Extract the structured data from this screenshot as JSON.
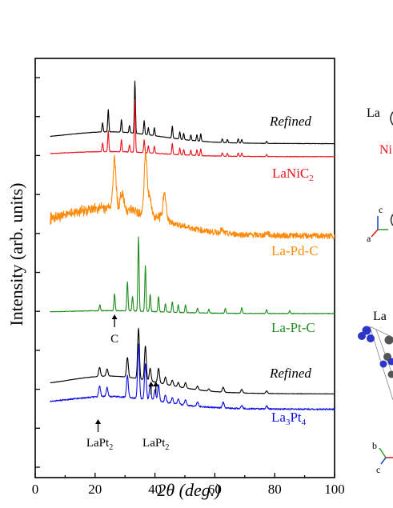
{
  "chart_data": {
    "type": "line",
    "xlabel": "2θ (deg.)",
    "ylabel": "Intensity (arb. units)",
    "xlim": [
      0,
      100
    ],
    "xticks": [
      "0",
      "20",
      "40",
      "60",
      "80",
      "100"
    ],
    "grid": false,
    "y_tick_labels_shown": false,
    "series": [
      {
        "name": "Refined",
        "color": "#000000",
        "style": "italic",
        "group": "LaNiC2",
        "background": 0.28,
        "peaks": [
          [
            22.5,
            0.25
          ],
          [
            24.4,
            0.62
          ],
          [
            28.8,
            0.35
          ],
          [
            31.5,
            0.2
          ],
          [
            33.3,
            1.45
          ],
          [
            36.4,
            0.38
          ],
          [
            37.8,
            0.2
          ],
          [
            39.8,
            0.22
          ],
          [
            45.8,
            0.33
          ],
          [
            48.3,
            0.2
          ],
          [
            49.6,
            0.17
          ],
          [
            52.0,
            0.15
          ],
          [
            54.0,
            0.17
          ],
          [
            55.3,
            0.2
          ],
          [
            62.5,
            0.1
          ],
          [
            64.2,
            0.09
          ],
          [
            67.8,
            0.12
          ],
          [
            69.0,
            0.1
          ],
          [
            77.3,
            0.06
          ]
        ]
      },
      {
        "name": "LaNiC2",
        "color": "#e8141c",
        "group": "LaNiC2",
        "background": 0.12,
        "peaks": [
          [
            22.5,
            0.25
          ],
          [
            24.4,
            0.58
          ],
          [
            28.8,
            0.33
          ],
          [
            31.5,
            0.2
          ],
          [
            33.3,
            1.45
          ],
          [
            36.4,
            0.35
          ],
          [
            37.8,
            0.2
          ],
          [
            39.8,
            0.2
          ],
          [
            45.8,
            0.3
          ],
          [
            48.3,
            0.18
          ],
          [
            49.6,
            0.15
          ],
          [
            52.0,
            0.14
          ],
          [
            54.0,
            0.16
          ],
          [
            55.3,
            0.18
          ],
          [
            62.5,
            0.09
          ],
          [
            64.2,
            0.08
          ],
          [
            67.8,
            0.1
          ],
          [
            69.0,
            0.09
          ],
          [
            77.3,
            0.06
          ]
        ]
      },
      {
        "name": "La-Pd-C",
        "color": "#ff8a0a",
        "group": "La-Pd-C",
        "background": 0.5,
        "peaks": [
          [
            26.5,
            1.0
          ],
          [
            29.0,
            0.35
          ],
          [
            36.9,
            1.25
          ],
          [
            38.3,
            0.35
          ],
          [
            43.2,
            0.6
          ],
          [
            62.3,
            0.07
          ],
          [
            77.5,
            0.05
          ]
        ]
      },
      {
        "name": "La-Pt-C",
        "color": "#1e8c1e",
        "group": "La-Pt-C",
        "background": 0.05,
        "peaks": [
          [
            21.6,
            0.12
          ],
          [
            26.5,
            0.35
          ],
          [
            30.8,
            0.6
          ],
          [
            32.5,
            0.3
          ],
          [
            34.5,
            1.55
          ],
          [
            36.8,
            0.95
          ],
          [
            38.4,
            0.35
          ],
          [
            41.2,
            0.32
          ],
          [
            43.5,
            0.17
          ],
          [
            45.8,
            0.22
          ],
          [
            47.8,
            0.16
          ],
          [
            50.2,
            0.16
          ],
          [
            54.2,
            0.1
          ],
          [
            58.0,
            0.08
          ],
          [
            63.5,
            0.1
          ],
          [
            69.0,
            0.12
          ],
          [
            77.3,
            0.08
          ],
          [
            85.0,
            0.06
          ]
        ]
      },
      {
        "name": "Refined",
        "color": "#000000",
        "style": "italic",
        "group": "La3Pt4",
        "background": 0.42,
        "peaks": [
          [
            21.5,
            0.25
          ],
          [
            24.0,
            0.2
          ],
          [
            30.8,
            0.55
          ],
          [
            34.5,
            1.4
          ],
          [
            36.8,
            0.95
          ],
          [
            38.4,
            0.35
          ],
          [
            41.2,
            0.4
          ],
          [
            43.5,
            0.2
          ],
          [
            45.8,
            0.15
          ],
          [
            47.8,
            0.12
          ],
          [
            50.2,
            0.15
          ],
          [
            54.2,
            0.1
          ],
          [
            58.0,
            0.06
          ],
          [
            62.8,
            0.14
          ],
          [
            69.0,
            0.1
          ],
          [
            77.3,
            0.07
          ]
        ]
      },
      {
        "name": "La3Pt4",
        "color": "#1010e0",
        "group": "La3Pt4",
        "background": 0.3,
        "peaks": [
          [
            21.5,
            0.3
          ],
          [
            24.0,
            0.25
          ],
          [
            30.8,
            0.6
          ],
          [
            34.5,
            1.5
          ],
          [
            36.8,
            1.0
          ],
          [
            38.4,
            0.4
          ],
          [
            40.0,
            0.3
          ],
          [
            41.2,
            0.45
          ],
          [
            43.5,
            0.2
          ],
          [
            45.8,
            0.16
          ],
          [
            47.8,
            0.13
          ],
          [
            50.2,
            0.15
          ],
          [
            54.2,
            0.12
          ],
          [
            62.8,
            0.16
          ],
          [
            69.0,
            0.1
          ],
          [
            77.3,
            0.08
          ]
        ]
      }
    ],
    "annotations": [
      {
        "text": "C",
        "x": 26.5
      },
      {
        "text": "LaPt",
        "sub": "2",
        "x": 21.0
      },
      {
        "text": "LaPt",
        "sub": "2",
        "x": 38.7
      },
      {
        "text": "LaPt",
        "sub": "2",
        "x": 40.3
      }
    ]
  },
  "labels": {
    "refined_top": "Refined",
    "lanic2": "LaNiC",
    "lanic2_sub": "2",
    "lapdc": "La-Pd-C",
    "laptc": "La-Pt-C",
    "refined_bottom": "Refined",
    "la3pt4_a": "La",
    "la3pt4_sub1": "3",
    "la3pt4_b": "Pt",
    "la3pt4_sub2": "4"
  },
  "inset": {
    "top_la": "La",
    "top_ni": "Ni",
    "axis_top": [
      "c",
      "a"
    ],
    "bottom_la": "La",
    "axis_bottom": [
      "b",
      "c"
    ]
  }
}
